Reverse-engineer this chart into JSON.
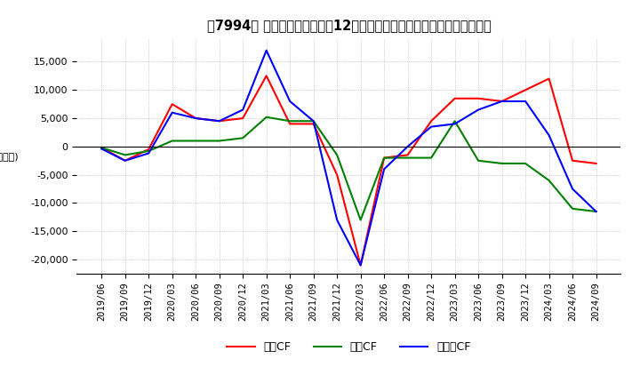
{
  "title": "【7994】 キャッシュフローの12か月移動合計の対前年同期増減額の推移",
  "ylabel": "(百万円)",
  "ylim": [
    -22500,
    19000
  ],
  "yticks": [
    -20000,
    -15000,
    -10000,
    -5000,
    0,
    5000,
    10000,
    15000
  ],
  "dates": [
    "2019/06",
    "2019/09",
    "2019/12",
    "2020/03",
    "2020/06",
    "2020/09",
    "2020/12",
    "2021/03",
    "2021/06",
    "2021/09",
    "2021/12",
    "2022/03",
    "2022/06",
    "2022/09",
    "2022/12",
    "2023/03",
    "2023/06",
    "2023/09",
    "2023/12",
    "2024/03",
    "2024/06",
    "2024/09"
  ],
  "operating_cf": [
    -200,
    -2500,
    -500,
    7500,
    5000,
    4500,
    5000,
    12500,
    4000,
    4000,
    -5000,
    -21000,
    -2000,
    -1500,
    4500,
    8500,
    8500,
    8000,
    10000,
    12000,
    -2500,
    -3000
  ],
  "investing_cf": [
    -200,
    -1500,
    -800,
    1000,
    1000,
    1000,
    1500,
    5200,
    4500,
    4500,
    -1500,
    -13000,
    -2000,
    -2000,
    -2000,
    4500,
    -2500,
    -3000,
    -3000,
    -6000,
    -11000,
    -11500
  ],
  "free_cf": [
    -400,
    -2500,
    -1200,
    6000,
    5000,
    4500,
    6500,
    17000,
    8000,
    4500,
    -13000,
    -21000,
    -4000,
    0,
    3500,
    4000,
    6500,
    8000,
    8000,
    2000,
    -7500,
    -11500
  ],
  "operating_color": "#ff0000",
  "investing_color": "#008000",
  "free_color": "#0000ff",
  "background_color": "#ffffff",
  "grid_color": "#aaaaaa",
  "legend_labels": [
    "営業CF",
    "投資CF",
    "フリーCF"
  ]
}
